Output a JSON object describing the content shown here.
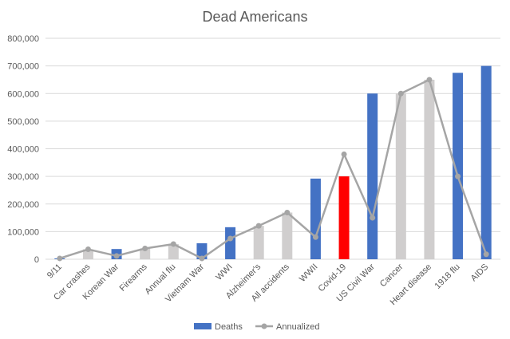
{
  "chart_data": {
    "type": "bar",
    "title": "Dead Americans",
    "categories": [
      "9/11",
      "Car crashes",
      "Korean War",
      "Firearms",
      "Annual flu",
      "Vietnam War",
      "WWI",
      "Alzheimer's",
      "All accidents",
      "WWII",
      "Covid-19",
      "US Civil War",
      "Cancer",
      "Heart disease",
      "1918 flu",
      "AIDS"
    ],
    "series": [
      {
        "name": "Deaths",
        "type": "bar",
        "values": [
          3000,
          36000,
          37000,
          39000,
          55000,
          58000,
          116000,
          121000,
          169000,
          292000,
          300000,
          600000,
          600000,
          650000,
          675000,
          700000
        ],
        "colors": [
          "#4472c4",
          "#d0cece",
          "#4472c4",
          "#d0cece",
          "#d0cece",
          "#4472c4",
          "#4472c4",
          "#d0cece",
          "#d0cece",
          "#4472c4",
          "#ff0000",
          "#4472c4",
          "#d0cece",
          "#d0cece",
          "#4472c4",
          "#4472c4"
        ]
      },
      {
        "name": "Annualized",
        "type": "line",
        "color": "#a5a5a5",
        "values": [
          3000,
          36000,
          12000,
          39000,
          55000,
          3000,
          75000,
          121000,
          169000,
          80000,
          380000,
          150000,
          600000,
          650000,
          300000,
          18000
        ]
      }
    ],
    "ylim": [
      0,
      800000
    ],
    "yticks": [
      "0",
      "100,000",
      "200,000",
      "300,000",
      "400,000",
      "500,000",
      "600,000",
      "700,000",
      "800,000"
    ],
    "grid": true,
    "legend": "bottom",
    "legend_swatch_color": "#4472c4"
  }
}
